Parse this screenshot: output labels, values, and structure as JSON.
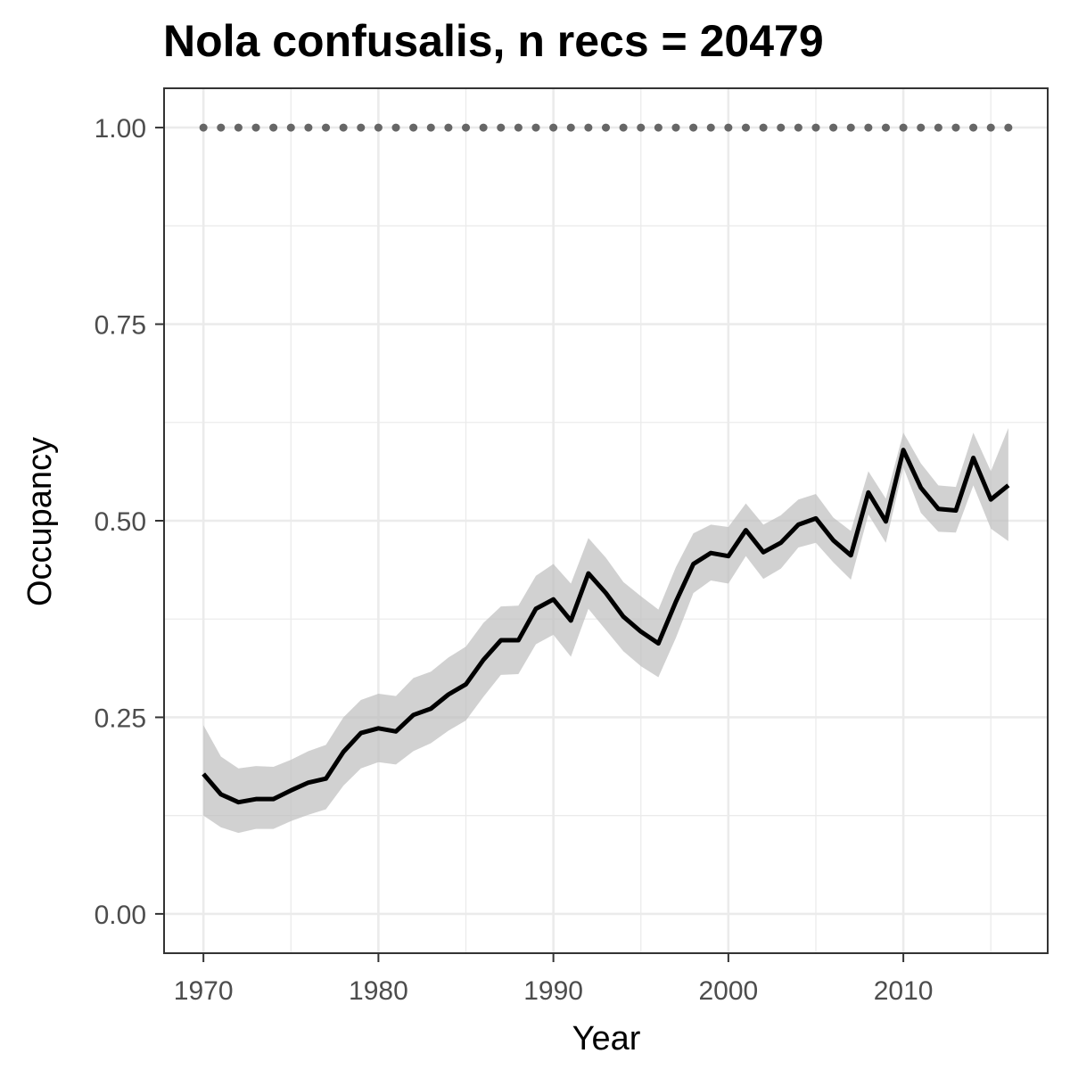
{
  "chart_data": {
    "type": "line",
    "title": "Nola confusalis, n recs = 20479",
    "xlabel": "Year",
    "ylabel": "Occupancy",
    "xlim": [
      1967.75,
      1918.25
    ],
    "ylim": [
      -0.05,
      1.05
    ],
    "x_ticks": [
      1970,
      1980,
      1990,
      2000,
      2010
    ],
    "x_tick_labels": [
      "1970",
      "1980",
      "1990",
      "2000",
      "2010"
    ],
    "y_ticks": [
      0,
      0.25,
      0.5,
      0.75,
      1
    ],
    "y_tick_labels": [
      "0.00",
      "0.25",
      "0.50",
      "0.75",
      "1.00"
    ],
    "grid": true,
    "series": [
      {
        "role": "occupancy",
        "color": "#000000",
        "x": [
          1970,
          1971,
          1972,
          1973,
          1974,
          1975,
          1976,
          1977,
          1978,
          1979,
          1980,
          1981,
          1982,
          1983,
          1984,
          1985,
          1986,
          1987,
          1988,
          1989,
          1990,
          1991,
          1992,
          1993,
          1994,
          1995,
          1996,
          1997,
          1998,
          1999,
          2000,
          2001,
          2002,
          2003,
          2004,
          2005,
          2006,
          2007,
          2008,
          2009,
          2010,
          2011,
          2012,
          2013,
          2014,
          2015,
          2016
        ],
        "y": [
          0.178,
          0.152,
          0.142,
          0.146,
          0.146,
          0.157,
          0.167,
          0.172,
          0.206,
          0.23,
          0.236,
          0.232,
          0.253,
          0.261,
          0.279,
          0.292,
          0.323,
          0.348,
          0.348,
          0.388,
          0.4,
          0.373,
          0.433,
          0.408,
          0.378,
          0.359,
          0.344,
          0.397,
          0.445,
          0.459,
          0.455,
          0.488,
          0.46,
          0.472,
          0.495,
          0.503,
          0.475,
          0.456,
          0.536,
          0.499,
          0.59,
          0.542,
          0.515,
          0.513,
          0.58,
          0.527,
          0.545
        ],
        "lower": [
          0.125,
          0.11,
          0.103,
          0.108,
          0.108,
          0.118,
          0.126,
          0.133,
          0.163,
          0.185,
          0.193,
          0.19,
          0.207,
          0.217,
          0.233,
          0.246,
          0.276,
          0.304,
          0.305,
          0.343,
          0.355,
          0.327,
          0.388,
          0.361,
          0.334,
          0.315,
          0.301,
          0.351,
          0.408,
          0.424,
          0.42,
          0.455,
          0.426,
          0.439,
          0.466,
          0.472,
          0.447,
          0.425,
          0.508,
          0.472,
          0.568,
          0.51,
          0.486,
          0.485,
          0.545,
          0.49,
          0.474
        ],
        "upper": [
          0.24,
          0.2,
          0.185,
          0.188,
          0.187,
          0.196,
          0.207,
          0.215,
          0.25,
          0.272,
          0.28,
          0.277,
          0.3,
          0.308,
          0.326,
          0.34,
          0.37,
          0.391,
          0.392,
          0.43,
          0.445,
          0.42,
          0.478,
          0.453,
          0.422,
          0.404,
          0.387,
          0.441,
          0.484,
          0.495,
          0.492,
          0.522,
          0.495,
          0.507,
          0.527,
          0.534,
          0.504,
          0.487,
          0.563,
          0.528,
          0.612,
          0.573,
          0.545,
          0.543,
          0.612,
          0.563,
          0.618
        ]
      },
      {
        "role": "reference",
        "color": "#666666",
        "style": "dotted",
        "x": [
          1970,
          1971,
          1972,
          1973,
          1974,
          1975,
          1976,
          1977,
          1978,
          1979,
          1980,
          1981,
          1982,
          1983,
          1984,
          1985,
          1986,
          1987,
          1988,
          1989,
          1990,
          1991,
          1992,
          1993,
          1994,
          1995,
          1996,
          1997,
          1998,
          1999,
          2000,
          2001,
          2002,
          2003,
          2004,
          2005,
          2006,
          2007,
          2008,
          2009,
          2010,
          2011,
          2012,
          2013,
          2014,
          2015,
          2016
        ],
        "y": [
          1,
          1,
          1,
          1,
          1,
          1,
          1,
          1,
          1,
          1,
          1,
          1,
          1,
          1,
          1,
          1,
          1,
          1,
          1,
          1,
          1,
          1,
          1,
          1,
          1,
          1,
          1,
          1,
          1,
          1,
          1,
          1,
          1,
          1,
          1,
          1,
          1,
          1,
          1,
          1,
          1,
          1,
          1,
          1,
          1,
          1,
          1
        ]
      }
    ],
    "colors": {
      "band": "#bebebe",
      "grid": "#ebebeb",
      "panel_border": "#333333",
      "tick_label": "#4d4d4d"
    }
  }
}
